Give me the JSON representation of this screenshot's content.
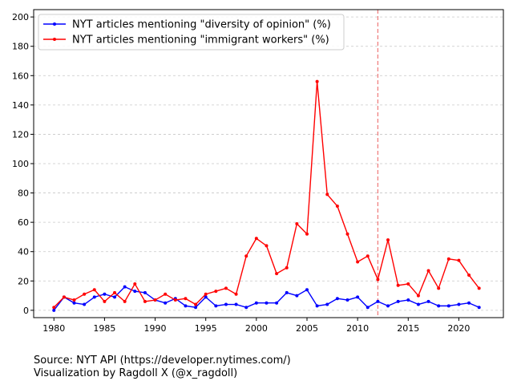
{
  "chart_data": {
    "type": "line",
    "xlim": [
      1978,
      2024.4
    ],
    "ylim": [
      -5,
      205
    ],
    "x_ticks": [
      1980,
      1985,
      1990,
      1995,
      2000,
      2005,
      2010,
      2015,
      2020
    ],
    "y_ticks": [
      0,
      20,
      40,
      60,
      80,
      100,
      120,
      140,
      160,
      180,
      200
    ],
    "grid": "horizontal-dashed",
    "legend_position": "top-left",
    "marker_line_x": 2012,
    "colors": {
      "marker_line": "#f08080",
      "grid": "#c8c8c8"
    },
    "x": [
      1980,
      1981,
      1982,
      1983,
      1984,
      1985,
      1986,
      1987,
      1988,
      1989,
      1990,
      1991,
      1992,
      1993,
      1994,
      1995,
      1996,
      1997,
      1998,
      1999,
      2000,
      2001,
      2002,
      2003,
      2004,
      2005,
      2006,
      2007,
      2008,
      2009,
      2010,
      2011,
      2012,
      2013,
      2014,
      2015,
      2016,
      2017,
      2018,
      2019,
      2020,
      2021,
      2022
    ],
    "series": [
      {
        "name": "NYT articles mentioning \"diversity of opinion\" (%)",
        "color": "#0000ff",
        "values": [
          0,
          9,
          5,
          4,
          9,
          11,
          9,
          16,
          13,
          12,
          7,
          5,
          8,
          3,
          2,
          9,
          3,
          4,
          4,
          2,
          5,
          5,
          5,
          12,
          10,
          14,
          3,
          4,
          8,
          7,
          9,
          2,
          6,
          3,
          6,
          7,
          4,
          6,
          3,
          3,
          4,
          5,
          2
        ]
      },
      {
        "name": "NYT articles mentioning \"immigrant workers\" (%)",
        "color": "#ff0000",
        "values": [
          2,
          9,
          7,
          11,
          14,
          6,
          12,
          6,
          18,
          6,
          7,
          11,
          7,
          8,
          4,
          11,
          13,
          15,
          11,
          37,
          49,
          44,
          25,
          29,
          59,
          52,
          156,
          79,
          71,
          52,
          33,
          37,
          21,
          48,
          17,
          18,
          10,
          27,
          15,
          35,
          34,
          24,
          15
        ]
      }
    ]
  },
  "source_line": "Source: NYT API (https://developer.nytimes.com/)",
  "credit_line": "Visualization by Ragdoll X (@x_ragdoll)"
}
